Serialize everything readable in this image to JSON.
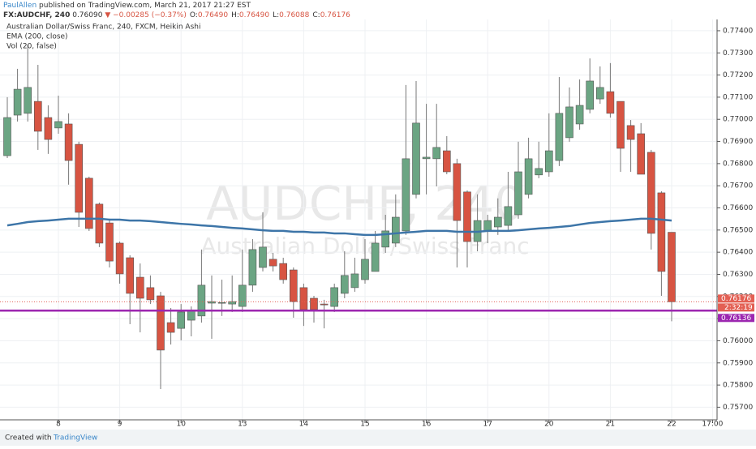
{
  "header": {
    "author": "PaulAllen",
    "published": "published on TradingView.com, March 21, 2017 21:27 EST",
    "symbol": "FX:AUDCHF, 240",
    "last": "0.76090",
    "change": "▼ −0.00285 (−0.37%)",
    "ohlc": [
      {
        "label": "O:",
        "text": "0.76490"
      },
      {
        "label": "H:",
        "text": "0.76490"
      },
      {
        "label": "L:",
        "text": "0.76088"
      },
      {
        "label": "C:",
        "text": "0.76176"
      }
    ]
  },
  "legend": {
    "main": "Australian Dollar/Swiss Franc, 240, FXCM, Heikin Ashi",
    "vol": "Vol (20, false)"
  },
  "watermark": {
    "title": "AUDCHF, 240",
    "subtitle": "Australian Dollar/Swiss Franc"
  },
  "footer": {
    "created": "Created with",
    "brand": "TradingView"
  },
  "chart_data": {
    "type": "candlestick",
    "up_color": "#6ba583",
    "down_color": "#d75442",
    "grid": true,
    "categories": [
      null,
      null,
      null,
      null,
      null,
      "8",
      null,
      null,
      null,
      null,
      null,
      "9",
      null,
      null,
      null,
      null,
      null,
      "10",
      null,
      null,
      null,
      null,
      null,
      "13",
      null,
      null,
      null,
      null,
      null,
      "14",
      null,
      null,
      null,
      null,
      null,
      "15",
      null,
      null,
      null,
      null,
      null,
      "16",
      null,
      null,
      null,
      null,
      null,
      "17",
      null,
      null,
      null,
      null,
      null,
      "20",
      null,
      null,
      null,
      null,
      null,
      "21",
      null,
      null,
      null,
      null,
      null,
      "22",
      null,
      null,
      null,
      "17:00"
    ],
    "open": [
      0.76836,
      0.77019,
      0.77027,
      0.77081,
      0.77008,
      0.76961,
      0.76979,
      0.76887,
      0.76734,
      0.76617,
      0.76532,
      0.76441,
      0.76375,
      0.76287,
      0.7624,
      0.76203,
      0.76082,
      0.76056,
      0.76093,
      0.76112,
      0.7617,
      0.7617,
      0.76166,
      0.76155,
      0.76251,
      0.76331,
      0.76368,
      0.76349,
      0.7632,
      0.7624,
      0.76192,
      0.76166,
      0.76155,
      0.76214,
      0.7624,
      0.76276,
      0.76313,
      0.76423,
      0.76441,
      0.76496,
      0.76661,
      0.76822,
      0.76822,
      0.76858,
      0.768,
      0.76672,
      0.76448,
      0.76496,
      0.76514,
      0.76521,
      0.76569,
      0.76661,
      0.76749,
      0.76763,
      0.76814,
      0.76917,
      0.76979,
      0.77045,
      0.77092,
      0.77125,
      0.77081,
      0.76972,
      0.76935,
      0.76851,
      0.76668,
      0.7649,
      null,
      null,
      null,
      null
    ],
    "high": [
      0.771,
      0.77228,
      0.77338,
      0.77246,
      0.77063,
      0.77107,
      0.77027,
      0.76899,
      0.76741,
      0.76624,
      0.76551,
      0.76448,
      0.76386,
      0.76349,
      0.76295,
      0.76221,
      0.76148,
      0.76166,
      0.76155,
      0.76412,
      0.76295,
      0.76276,
      0.76295,
      0.76412,
      0.76459,
      0.7658,
      0.76397,
      0.76375,
      0.76331,
      0.76258,
      0.76203,
      0.76185,
      0.76258,
      0.76404,
      0.76375,
      0.76459,
      0.76496,
      0.76569,
      0.76661,
      0.77155,
      0.77173,
      0.7707,
      0.7707,
      0.76924,
      0.76822,
      0.76679,
      0.76661,
      0.76569,
      0.76643,
      0.76763,
      0.76899,
      0.76917,
      0.76899,
      0.77027,
      0.77191,
      0.77144,
      0.7718,
      0.77275,
      0.77239,
      0.77254,
      0.77081,
      0.76997,
      0.76983,
      0.76862,
      0.76675,
      0.7649,
      null,
      null,
      null,
      null
    ],
    "low": [
      0.76825,
      0.7699,
      0.7699,
      0.76862,
      0.76844,
      0.76935,
      0.76705,
      0.76514,
      0.76496,
      0.76423,
      0.76331,
      0.76258,
      0.76075,
      0.76038,
      0.76166,
      0.75782,
      0.75983,
      0.76002,
      0.7602,
      0.76082,
      0.76009,
      0.76112,
      0.7613,
      0.7613,
      0.76221,
      0.76313,
      0.76313,
      0.76258,
      0.76104,
      0.76067,
      0.76082,
      0.76056,
      0.7613,
      0.76192,
      0.76221,
      0.76258,
      0.76313,
      0.76397,
      0.76423,
      0.76478,
      0.76643,
      0.76661,
      0.76697,
      0.76752,
      0.76331,
      0.76331,
      0.76404,
      0.76441,
      0.76478,
      0.76496,
      0.76551,
      0.76643,
      0.76734,
      0.76741,
      0.76789,
      0.76899,
      0.76953,
      0.77027,
      0.7707,
      0.77008,
      0.76763,
      0.76763,
      0.76752,
      0.76412,
      0.76203,
      0.76088,
      null,
      null,
      null,
      null
    ],
    "close": [
      0.77008,
      0.77136,
      0.77144,
      0.76946,
      0.76909,
      0.7699,
      0.76814,
      0.7658,
      0.76507,
      0.76441,
      0.7636,
      0.76302,
      0.76214,
      0.76192,
      0.76185,
      0.75958,
      0.76038,
      0.7613,
      0.76137,
      0.76251,
      0.76177,
      0.76173,
      0.76177,
      0.76251,
      0.76412,
      0.76423,
      0.76338,
      0.76276,
      0.76177,
      0.76141,
      0.76141,
      0.76162,
      0.7624,
      0.76295,
      0.76302,
      0.76368,
      0.76441,
      0.76496,
      0.76558,
      0.76822,
      0.76983,
      0.76829,
      0.76873,
      0.76763,
      0.76543,
      0.76448,
      0.76543,
      0.76543,
      0.76558,
      0.76606,
      0.76763,
      0.76822,
      0.76778,
      0.76858,
      0.77027,
      0.77056,
      0.77063,
      0.77173,
      0.77144,
      0.77027,
      0.76869,
      0.76909,
      0.76752,
      0.76485,
      0.76313,
      0.76176,
      null,
      null,
      null,
      null
    ],
    "ema": {
      "name": "EMA (200, close)",
      "color": "#3d75a8",
      "values": [
        0.76521,
        0.76528,
        0.76536,
        0.7654,
        0.76543,
        0.76547,
        0.76551,
        0.76551,
        0.76551,
        0.76551,
        0.76547,
        0.76547,
        0.76543,
        0.76543,
        0.7654,
        0.76536,
        0.76532,
        0.76528,
        0.76525,
        0.76521,
        0.76518,
        0.76514,
        0.7651,
        0.76507,
        0.76503,
        0.76499,
        0.76496,
        0.76496,
        0.76492,
        0.76492,
        0.76489,
        0.76489,
        0.76485,
        0.76485,
        0.76481,
        0.76478,
        0.76478,
        0.76481,
        0.76485,
        0.76489,
        0.76492,
        0.76496,
        0.76496,
        0.76496,
        0.76492,
        0.76492,
        0.76492,
        0.76496,
        0.76496,
        0.76496,
        0.76499,
        0.76503,
        0.76507,
        0.7651,
        0.76514,
        0.76518,
        0.76525,
        0.76532,
        0.76536,
        0.7654,
        0.76543,
        0.76547,
        0.76551,
        0.76551,
        0.76547,
        0.76543,
        null,
        null,
        null,
        null
      ]
    },
    "price_lines": [
      {
        "value": 0.76176,
        "label": "0.76176",
        "color": "#e35f53"
      },
      {
        "value": 0.76136,
        "label": "0.76136",
        "color": "#9c27b0"
      }
    ],
    "countdown": "2:32:19",
    "ylim": [
      0.75643,
      0.77451
    ],
    "yticks": [
      {
        "value": 0.757,
        "label": "0.75700"
      },
      {
        "value": 0.758,
        "label": "0.75800"
      },
      {
        "value": 0.759,
        "label": "0.75900"
      },
      {
        "value": 0.76,
        "label": "0.76000"
      },
      {
        "value": 0.761,
        "label": "0.76100"
      },
      {
        "value": 0.762,
        "label": "0.76200"
      },
      {
        "value": 0.763,
        "label": "0.76300"
      },
      {
        "value": 0.764,
        "label": "0.76400"
      },
      {
        "value": 0.765,
        "label": "0.76500"
      },
      {
        "value": 0.766,
        "label": "0.76600"
      },
      {
        "value": 0.767,
        "label": "0.76700"
      },
      {
        "value": 0.768,
        "label": "0.76800"
      },
      {
        "value": 0.769,
        "label": "0.76900"
      },
      {
        "value": 0.77,
        "label": "0.77000"
      },
      {
        "value": 0.771,
        "label": "0.77100"
      },
      {
        "value": 0.772,
        "label": "0.77200"
      },
      {
        "value": 0.773,
        "label": "0.77300"
      },
      {
        "value": 0.774,
        "label": "0.77400"
      }
    ]
  }
}
